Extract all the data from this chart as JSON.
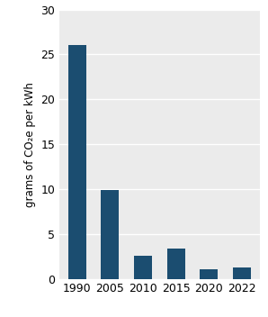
{
  "categories": [
    "1990",
    "2005",
    "2010",
    "2015",
    "2020",
    "2022"
  ],
  "values": [
    26.0,
    9.9,
    2.6,
    3.4,
    1.1,
    1.3
  ],
  "bar_color": "#1b4d70",
  "ylabel": "grams of CO₂e per kWh",
  "ylim": [
    0,
    30
  ],
  "yticks": [
    0,
    5,
    10,
    15,
    20,
    25,
    30
  ],
  "plot_bg_color": "#ebebeb",
  "fig_bg_color": "#ffffff",
  "bar_width": 0.55,
  "ylabel_fontsize": 8.5,
  "tick_fontsize": 9
}
